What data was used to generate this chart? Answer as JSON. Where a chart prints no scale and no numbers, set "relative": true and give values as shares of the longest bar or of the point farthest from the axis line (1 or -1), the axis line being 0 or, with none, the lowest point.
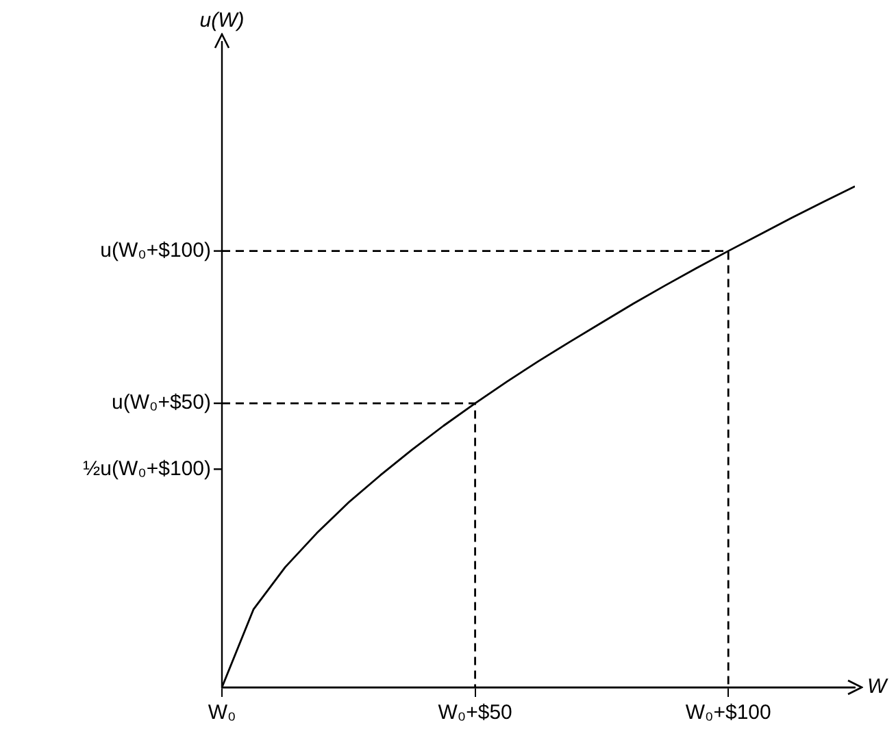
{
  "chart_data": {
    "type": "line",
    "relative": true,
    "xlabel": "W",
    "categories": [
      "W₀",
      null,
      null,
      null,
      null,
      null,
      null,
      null,
      "W₀+$50",
      null,
      null,
      null,
      null,
      null,
      null,
      null,
      "W₀+$100",
      null,
      null,
      null,
      null
    ],
    "annotations": [
      "u(W)",
      "½u(W₀+$100)",
      {
        "text": "u(W₀+$50)",
        "x": "W₀",
        "y": 0.567
      },
      {
        "text": "u(W₀+$100)",
        "x": "W₀",
        "y": 0.871
      }
    ],
    "legend": false,
    "marker": "none",
    "series": [
      {
        "color": "#000000",
        "line_style": "solid",
        "values": [
          0,
          0.156,
          0.24,
          0.308,
          0.369,
          0.423,
          0.474,
          0.522,
          0.567,
          0.61,
          0.651,
          0.69,
          0.728,
          0.766,
          0.802,
          0.837,
          0.871,
          0.904,
          0.937,
          0.969,
          1
        ]
      },
      {
        "color": "#000000",
        "line_style": "dashed",
        "x": [
          "W₀",
          "W₀+$50",
          "W₀+$50"
        ],
        "values": [
          0.567,
          0.567,
          0
        ]
      },
      {
        "color": "#000000",
        "line_style": "dashed",
        "x": [
          "W₀",
          "W₀+$100",
          "W₀+$100"
        ],
        "values": [
          0.871,
          0.871,
          0
        ]
      }
    ]
  }
}
